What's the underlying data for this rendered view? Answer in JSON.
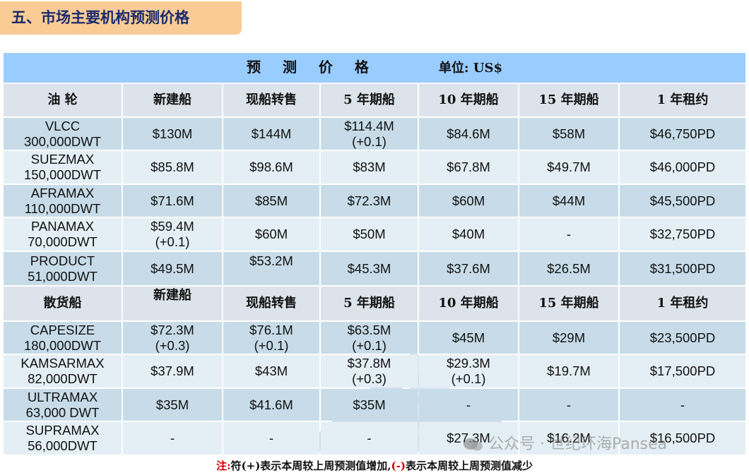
{
  "section_title": "五、市场主要机构预测价格",
  "table_title": "预  测  价  格",
  "unit": "单位: US$",
  "tanker": {
    "headers": [
      "油  轮",
      "新建船",
      "现船转售",
      "5 年期船",
      "10 年期船",
      "15 年期船",
      "1 年租约"
    ],
    "rows": [
      [
        "VLCC\n300,000DWT",
        "$130M",
        "$144M",
        "$114.4M\n(+0.1)",
        "$84.6M",
        "$58M",
        "$46,750PD"
      ],
      [
        "SUEZMAX\n150,000DWT",
        "$85.8M",
        "$98.6M",
        "$83M",
        "$67.8M",
        "$49.7M",
        "$46,000PD"
      ],
      [
        "AFRAMAX\n110,000DWT",
        "$71.6M",
        "$85M",
        "$72.3M",
        "$60M",
        "$44M",
        "$45,500PD"
      ],
      [
        "PANAMAX\n70,000DWT",
        "$59.4M\n(+0.1)",
        "$60M",
        "$50M",
        "$40M",
        "-",
        "$32,750PD"
      ],
      [
        "PRODUCT\n51,000DWT",
        "$49.5M",
        "$53.2M",
        "$45.3M",
        "$37.6M",
        "$26.5M",
        "$31,500PD"
      ]
    ]
  },
  "bulker": {
    "headers": [
      "散货船",
      "新建船",
      "现船转售",
      "5 年期船",
      "10 年期船",
      "15 年期船",
      "1 年租约"
    ],
    "rows": [
      [
        "CAPESIZE\n180,000DWT",
        "$72.3M\n(+0.3)",
        "$76.1M\n(+0.1)",
        "$63.5M\n(+0.1)",
        "$45M",
        "$29M",
        "$23,500PD"
      ],
      [
        "KAMSARMAX\n82,000DWT",
        "$37.9M",
        "$43M",
        "$37.8M\n(+0.3)",
        "$29.3M\n(+0.1)",
        "$19.7M",
        "$17,500PD"
      ],
      [
        "ULTRAMAX\n63,000 DWT",
        "$35M",
        "$41.6M",
        "$35M",
        "-",
        "-",
        "-"
      ],
      [
        "SUPRAMAX\n56,000DWT",
        "-",
        "-",
        "-",
        "$27.3M",
        "$16.2M",
        "$16,500PD"
      ]
    ]
  },
  "footnote": {
    "prefix": "注:",
    "part1": "符(+)表示本周较上周预测值增加,",
    "minus_sign": "(-)",
    "part2": "表示本周较上周预测值减少"
  },
  "watermark_text": "公众号 · 世纪环海Pansea",
  "colors": {
    "title_bar": "#99ccff",
    "header_bg": "#dde3ea",
    "row_dark": "#c7dce8",
    "row_light": "#e4eef5",
    "section_title_bg": "#f9cc96",
    "footnote_red": "#d00000"
  }
}
